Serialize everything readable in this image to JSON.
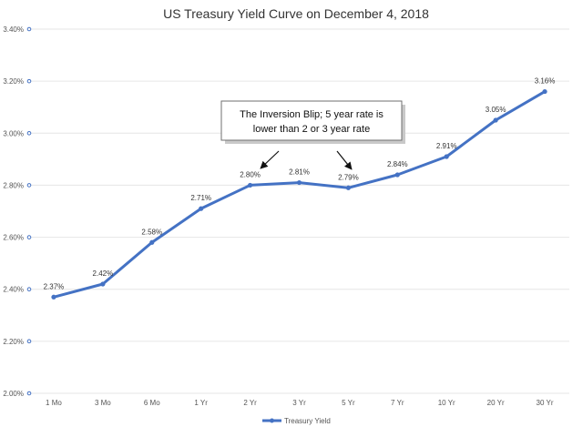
{
  "colors": {
    "series": "#4472C4",
    "grid": "#e6e6e6",
    "callout_border": "#6f6f6f",
    "callout_shadow": "#c9c9c9",
    "arrow": "#111111"
  },
  "chart_data": {
    "type": "line",
    "title": "US Treasury Yield Curve on December 4, 2018",
    "xlabel": "",
    "ylabel": "",
    "categories": [
      "1 Mo",
      "3 Mo",
      "6 Mo",
      "1 Yr",
      "2 Yr",
      "3 Yr",
      "5 Yr",
      "7 Yr",
      "10 Yr",
      "20 Yr",
      "30 Yr"
    ],
    "y_ticks": [
      "2.00%",
      "2.20%",
      "2.40%",
      "2.60%",
      "2.80%",
      "3.00%",
      "3.20%",
      "3.40%"
    ],
    "ylim": [
      2.0,
      3.4
    ],
    "grid": true,
    "legend_position": "bottom",
    "series": [
      {
        "name": "Treasury   Yield",
        "values": [
          2.37,
          2.42,
          2.58,
          2.71,
          2.8,
          2.81,
          2.79,
          2.84,
          2.91,
          3.05,
          3.16
        ],
        "labels": [
          "2.37%",
          "2.42%",
          "2.58%",
          "2.71%",
          "2.80%",
          "2.81%",
          "2.79%",
          "2.84%",
          "2.91%",
          "3.05%",
          "3.16%"
        ]
      }
    ],
    "annotation": {
      "line1": "The Inversion Blip; 5 year rate is",
      "line2": "lower than 2 or 3 year rate"
    }
  }
}
